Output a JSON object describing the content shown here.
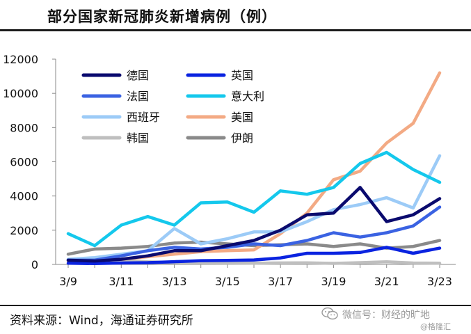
{
  "header": {
    "title": "部分国家新冠肺炎新增病例（例）"
  },
  "footer": {
    "source": "资料来源：Wind，海通证券研究所",
    "watermark_top": "微信号：财经的旷地",
    "watermark_bottom": "@格隆汇"
  },
  "chart_data": {
    "type": "line",
    "title": "部分国家新冠肺炎新增病例（例）",
    "xlabel": "",
    "ylabel": "",
    "x": [
      "3/9",
      "3/10",
      "3/11",
      "3/12",
      "3/13",
      "3/14",
      "3/15",
      "3/16",
      "3/17",
      "3/18",
      "3/19",
      "3/20",
      "3/21",
      "3/22",
      "3/23"
    ],
    "x_tick_labels": [
      "3/9",
      "3/11",
      "3/13",
      "3/15",
      "3/17",
      "3/19",
      "3/21",
      "3/23"
    ],
    "ylim": [
      0,
      12000
    ],
    "y_ticks": [
      0,
      2000,
      4000,
      6000,
      8000,
      10000,
      12000
    ],
    "grid": false,
    "legend_position": "top-left",
    "series": [
      {
        "name": "德国",
        "color": "#0a0a6e",
        "values": [
          250,
          200,
          300,
          500,
          800,
          800,
          1100,
          1400,
          2000,
          2900,
          3000,
          4500,
          2500,
          2900,
          3850
        ]
      },
      {
        "name": "英国",
        "color": "#0a23e0",
        "values": [
          70,
          50,
          80,
          100,
          160,
          220,
          230,
          260,
          380,
          650,
          650,
          700,
          1000,
          650,
          950
        ]
      },
      {
        "name": "法国",
        "color": "#3a62e2",
        "values": [
          250,
          250,
          500,
          800,
          1000,
          900,
          1000,
          1200,
          1100,
          1400,
          1850,
          1600,
          1850,
          2250,
          3350
        ]
      },
      {
        "name": "意大利",
        "color": "#14c8ec",
        "values": [
          1800,
          1100,
          2300,
          2800,
          2300,
          3600,
          3650,
          3050,
          4300,
          4100,
          4500,
          5900,
          6550,
          5550,
          4800
        ]
      },
      {
        "name": "西班牙",
        "color": "#9ccbf7",
        "values": [
          300,
          400,
          600,
          800,
          2100,
          1200,
          1500,
          1900,
          1900,
          2500,
          3200,
          3500,
          3900,
          3300,
          6350
        ]
      },
      {
        "name": "美国",
        "color": "#f3aa84",
        "values": [
          200,
          300,
          300,
          450,
          600,
          750,
          800,
          850,
          1800,
          3000,
          4950,
          5450,
          7100,
          8250,
          11200
        ]
      },
      {
        "name": "韩国",
        "color": "#bfbfbf",
        "values": [
          250,
          300,
          250,
          150,
          100,
          90,
          80,
          75,
          85,
          90,
          60,
          100,
          150,
          80,
          70
        ]
      },
      {
        "name": "伊朗",
        "color": "#8a8a8a",
        "values": [
          600,
          900,
          950,
          1050,
          1250,
          1300,
          1200,
          1100,
          1150,
          1200,
          1050,
          1200,
          950,
          1050,
          1400
        ]
      }
    ]
  }
}
